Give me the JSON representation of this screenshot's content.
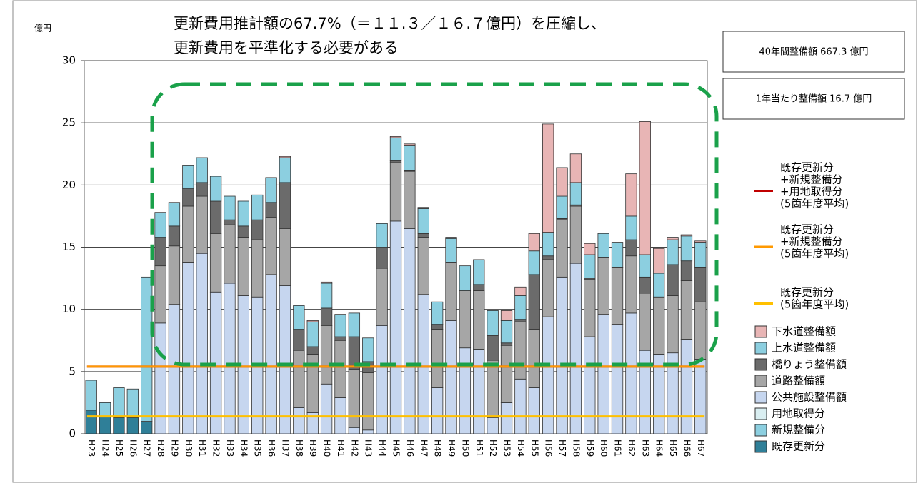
{
  "chart_data": {
    "type": "bar",
    "stacked": true,
    "unit_label": "億円",
    "annotation": [
      "更新費用推計額の67.7%（＝１１.３／１６.７億円）を圧縮し、",
      "更新費用を平準化する必要がある"
    ],
    "info_boxes": [
      "40年間整備額 667.3 億円",
      "1年当たり整備額 16.7 億円"
    ],
    "categories": [
      "H23",
      "H24",
      "H25",
      "H26",
      "H27",
      "H28",
      "H29",
      "H30",
      "H31",
      "H32",
      "H33",
      "H34",
      "H35",
      "H36",
      "H37",
      "H38",
      "H39",
      "H40",
      "H41",
      "H42",
      "H43",
      "H44",
      "H45",
      "H46",
      "H47",
      "H48",
      "H49",
      "H50",
      "H51",
      "H52",
      "H53",
      "H54",
      "H55",
      "H56",
      "H57",
      "H58",
      "H59",
      "H60",
      "H61",
      "H62",
      "H63",
      "H64",
      "H65",
      "H66",
      "H67"
    ],
    "series": [
      {
        "name": "既存更新分",
        "color": "#2f7f98",
        "values": [
          1.9,
          1.4,
          1.3,
          1.3,
          1.0,
          0,
          0,
          0,
          0,
          0,
          0,
          0,
          0,
          0,
          0,
          0,
          0,
          0,
          0,
          0,
          0,
          0,
          0,
          0,
          0,
          0,
          0,
          0,
          0,
          0,
          0,
          0,
          0,
          0,
          0,
          0,
          0,
          0,
          0,
          0,
          0,
          0,
          0,
          0,
          0
        ]
      },
      {
        "name": "新規整備分",
        "color": "#8ccfe0",
        "values": [
          2.4,
          1.1,
          2.4,
          2.3,
          11.6,
          0,
          0,
          0,
          0,
          0,
          0,
          0,
          0,
          0,
          0,
          0,
          0,
          0,
          0,
          0,
          0,
          0,
          0,
          0,
          0,
          0,
          0,
          0,
          0,
          0,
          0,
          0,
          0,
          0,
          0,
          0,
          0,
          0,
          0,
          0,
          0,
          0,
          0,
          0,
          0
        ]
      },
      {
        "name": "用地取得分",
        "color": "#d9eef1",
        "values": [
          0,
          0,
          0,
          0,
          0,
          0,
          0,
          0,
          0,
          0,
          0,
          0,
          0,
          0,
          0,
          0,
          0,
          0,
          0,
          0,
          0,
          0,
          0,
          0,
          0,
          0,
          0,
          0,
          0,
          0,
          0,
          0,
          0,
          0,
          0,
          0,
          0,
          0,
          0,
          0,
          0,
          0,
          0,
          0,
          0
        ]
      },
      {
        "name": "公共施設整備額",
        "color": "#c6d6ef",
        "values": [
          0,
          0,
          0,
          0,
          0,
          8.9,
          10.4,
          13.8,
          14.5,
          11.4,
          12.1,
          11.1,
          11.0,
          12.8,
          11.9,
          2.1,
          1.7,
          4.0,
          2.9,
          0.5,
          0.3,
          8.7,
          17.1,
          16.5,
          11.2,
          3.7,
          9.1,
          6.9,
          6.8,
          1.3,
          2.5,
          4.4,
          3.7,
          9.4,
          12.6,
          13.7,
          7.8,
          9.6,
          8.8,
          9.7,
          6.7,
          6.4,
          6.5,
          7.6,
          6.0
        ]
      },
      {
        "name": "道路整備額",
        "color": "#a6a6a6",
        "values": [
          0,
          0,
          0,
          0,
          0,
          4.6,
          4.7,
          4.5,
          4.6,
          4.7,
          4.7,
          4.7,
          4.6,
          4.6,
          4.6,
          4.6,
          4.7,
          4.7,
          4.6,
          4.7,
          4.6,
          4.6,
          4.7,
          4.6,
          4.6,
          4.7,
          4.7,
          4.6,
          4.7,
          4.6,
          4.6,
          4.6,
          4.7,
          4.6,
          4.6,
          4.6,
          4.6,
          4.6,
          4.6,
          4.6,
          4.6,
          4.6,
          4.6,
          4.7,
          4.6
        ]
      },
      {
        "name": "橋りょう整備額",
        "color": "#6b6b6b",
        "values": [
          0,
          0,
          0,
          0,
          0,
          2.3,
          1.6,
          1.4,
          1.1,
          2.6,
          0.4,
          0.9,
          1.6,
          1.2,
          3.7,
          1.7,
          0.6,
          1.4,
          0.3,
          2.6,
          0.9,
          1.7,
          0.2,
          0.1,
          0.3,
          0.4,
          0,
          0,
          0.5,
          2.0,
          0.2,
          0.2,
          4.4,
          0.3,
          0.1,
          0.1,
          0.1,
          0,
          0,
          1.3,
          1.3,
          0,
          2.5,
          1.6,
          2.8
        ]
      },
      {
        "name": "上水道整備額",
        "color": "#8ccfe0",
        "values": [
          0,
          0,
          0,
          0,
          0,
          2.0,
          1.9,
          1.9,
          2.0,
          2.0,
          1.9,
          2.0,
          2.0,
          2.0,
          2.0,
          1.9,
          2.0,
          2.0,
          1.8,
          1.9,
          1.9,
          1.9,
          1.8,
          2.0,
          2.0,
          1.8,
          1.9,
          2.0,
          2.0,
          2.0,
          1.8,
          1.9,
          1.9,
          1.9,
          1.8,
          1.8,
          1.9,
          1.9,
          2.0,
          1.9,
          1.8,
          1.9,
          2.0,
          2.0,
          2.0
        ]
      },
      {
        "name": "下水道整備額",
        "color": "#e8b5b5",
        "values": [
          0,
          0,
          0,
          0,
          0,
          0,
          0,
          0,
          0,
          0,
          0,
          0,
          0,
          0,
          0.1,
          0,
          0.1,
          0.1,
          0,
          0,
          0,
          0,
          0.1,
          0.1,
          0.1,
          0,
          0.1,
          0,
          0,
          0,
          0.8,
          0.7,
          1.4,
          8.7,
          2.3,
          2.3,
          0.9,
          0,
          0,
          3.4,
          10.7,
          2.0,
          0.2,
          0.1,
          0.1
        ]
      }
    ],
    "lines": [
      {
        "name": [
          "既存更新分",
          "+新規整備分",
          "+用地取得分",
          "(5箇年度平均)"
        ],
        "color": "#c00000",
        "value": 5.4
      },
      {
        "name": [
          "既存更新分",
          "+新規整備分",
          "(5箇年度平均)"
        ],
        "color": "#ff9900",
        "value": 5.4
      },
      {
        "name": [
          "既存更新分",
          "(5箇年度平均)"
        ],
        "color": "#ffc000",
        "value": 1.4
      }
    ],
    "ylim": [
      0,
      30
    ],
    "yticks": [
      0,
      5,
      10,
      15,
      20,
      25,
      30
    ],
    "grid": true
  }
}
